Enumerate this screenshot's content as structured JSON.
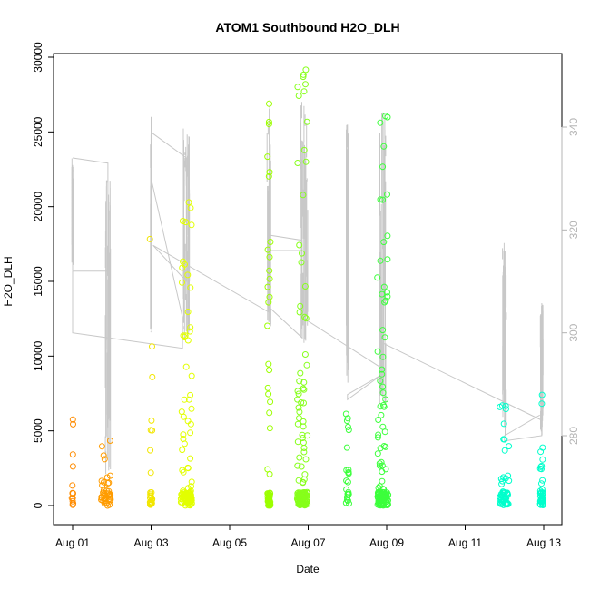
{
  "chart_data": {
    "type": "scatter",
    "title": "ATOM1 Southbound H2O_DLH",
    "xlabel": "Date",
    "ylabel": "H2O_DLH",
    "x_ticks": [
      "Aug 01",
      "Aug 03",
      "Aug 05",
      "Aug 07",
      "Aug 09",
      "Aug 11",
      "Aug 13"
    ],
    "xlim_days": [
      0.75,
      12.45
    ],
    "ylim": [
      -800,
      30300
    ],
    "y_ticks": [
      "0",
      "5000",
      "10000",
      "15000",
      "20000",
      "25000",
      "30000"
    ],
    "right_axis": {
      "ticks": [
        "280",
        "300",
        "320",
        "340"
      ],
      "ylim": [
        262,
        349
      ],
      "color": "#b4b4b4"
    },
    "colors": {
      "points_gradient": [
        "#ff8c00",
        "#ffd400",
        "#e8ff00",
        "#7cff00",
        "#2eff2e",
        "#00ffcc"
      ],
      "line": "#c8c8c8",
      "axis": "#000000"
    },
    "clusters": [
      {
        "day": 0.0,
        "count": 14,
        "spread": 0.02,
        "max": 7500,
        "color": "#ff8c00"
      },
      {
        "day": 0.85,
        "count": 45,
        "spread": 0.12,
        "max": 4700,
        "color": "#ff9c00"
      },
      {
        "day": 2.0,
        "count": 25,
        "spread": 0.03,
        "max": 20000,
        "color": "#f2e600"
      },
      {
        "day": 2.9,
        "count": 110,
        "spread": 0.14,
        "max": 20500,
        "color": "#e2ff00"
      },
      {
        "day": 5.0,
        "count": 60,
        "spread": 0.04,
        "max": 27700,
        "color": "#9cff00"
      },
      {
        "day": 5.85,
        "count": 130,
        "spread": 0.13,
        "max": 29300,
        "color": "#86ff1a"
      },
      {
        "day": 7.0,
        "count": 25,
        "spread": 0.04,
        "max": 7300,
        "color": "#3cff3c"
      },
      {
        "day": 7.9,
        "count": 130,
        "spread": 0.14,
        "max": 26500,
        "color": "#3cff3c"
      },
      {
        "day": 11.0,
        "count": 55,
        "spread": 0.12,
        "max": 6900,
        "color": "#00ffcc"
      },
      {
        "day": 11.95,
        "count": 45,
        "spread": 0.04,
        "max": 8300,
        "color": "#00ffcc"
      }
    ],
    "line_segments": [
      {
        "day": 0.0,
        "spread": 0.02,
        "min": 312,
        "max": 334
      },
      {
        "day": 0.9,
        "spread": 0.07,
        "min": 272,
        "max": 330
      },
      {
        "day": 2.0,
        "spread": 0.02,
        "min": 300,
        "max": 340
      },
      {
        "day": 2.9,
        "spread": 0.08,
        "min": 298,
        "max": 340
      },
      {
        "day": 5.0,
        "spread": 0.05,
        "min": 300,
        "max": 345
      },
      {
        "day": 5.9,
        "spread": 0.09,
        "min": 298,
        "max": 345
      },
      {
        "day": 7.0,
        "spread": 0.03,
        "min": 290,
        "max": 342
      },
      {
        "day": 7.9,
        "spread": 0.08,
        "min": 286,
        "max": 345
      },
      {
        "day": 11.0,
        "spread": 0.05,
        "min": 280,
        "max": 318
      },
      {
        "day": 11.95,
        "spread": 0.04,
        "min": 280,
        "max": 306
      }
    ],
    "connector_path": [
      [
        0.0,
        334
      ],
      [
        0.9,
        333
      ],
      [
        0.9,
        312
      ],
      [
        0.0,
        312
      ],
      [
        0.0,
        300
      ],
      [
        2.8,
        297
      ],
      [
        2.8,
        303
      ],
      [
        2.0,
        330
      ],
      [
        2.0,
        342
      ],
      [
        2.0,
        339
      ],
      [
        2.9,
        334
      ],
      [
        2.9,
        310
      ],
      [
        2.05,
        317
      ],
      [
        5.0,
        304
      ],
      [
        5.0,
        316
      ],
      [
        5.85,
        316
      ],
      [
        5.85,
        318
      ],
      [
        5.0,
        319
      ],
      [
        5.0,
        305
      ],
      [
        5.85,
        299
      ],
      [
        5.85,
        303
      ],
      [
        7.9,
        293
      ],
      [
        7.9,
        292
      ],
      [
        7.0,
        287
      ],
      [
        7.0,
        288
      ],
      [
        7.9,
        292
      ],
      [
        7.9,
        298
      ],
      [
        11.95,
        283
      ],
      [
        11.95,
        280
      ],
      [
        11.0,
        279
      ],
      [
        11.0,
        280
      ],
      [
        11.9,
        284
      ]
    ]
  }
}
